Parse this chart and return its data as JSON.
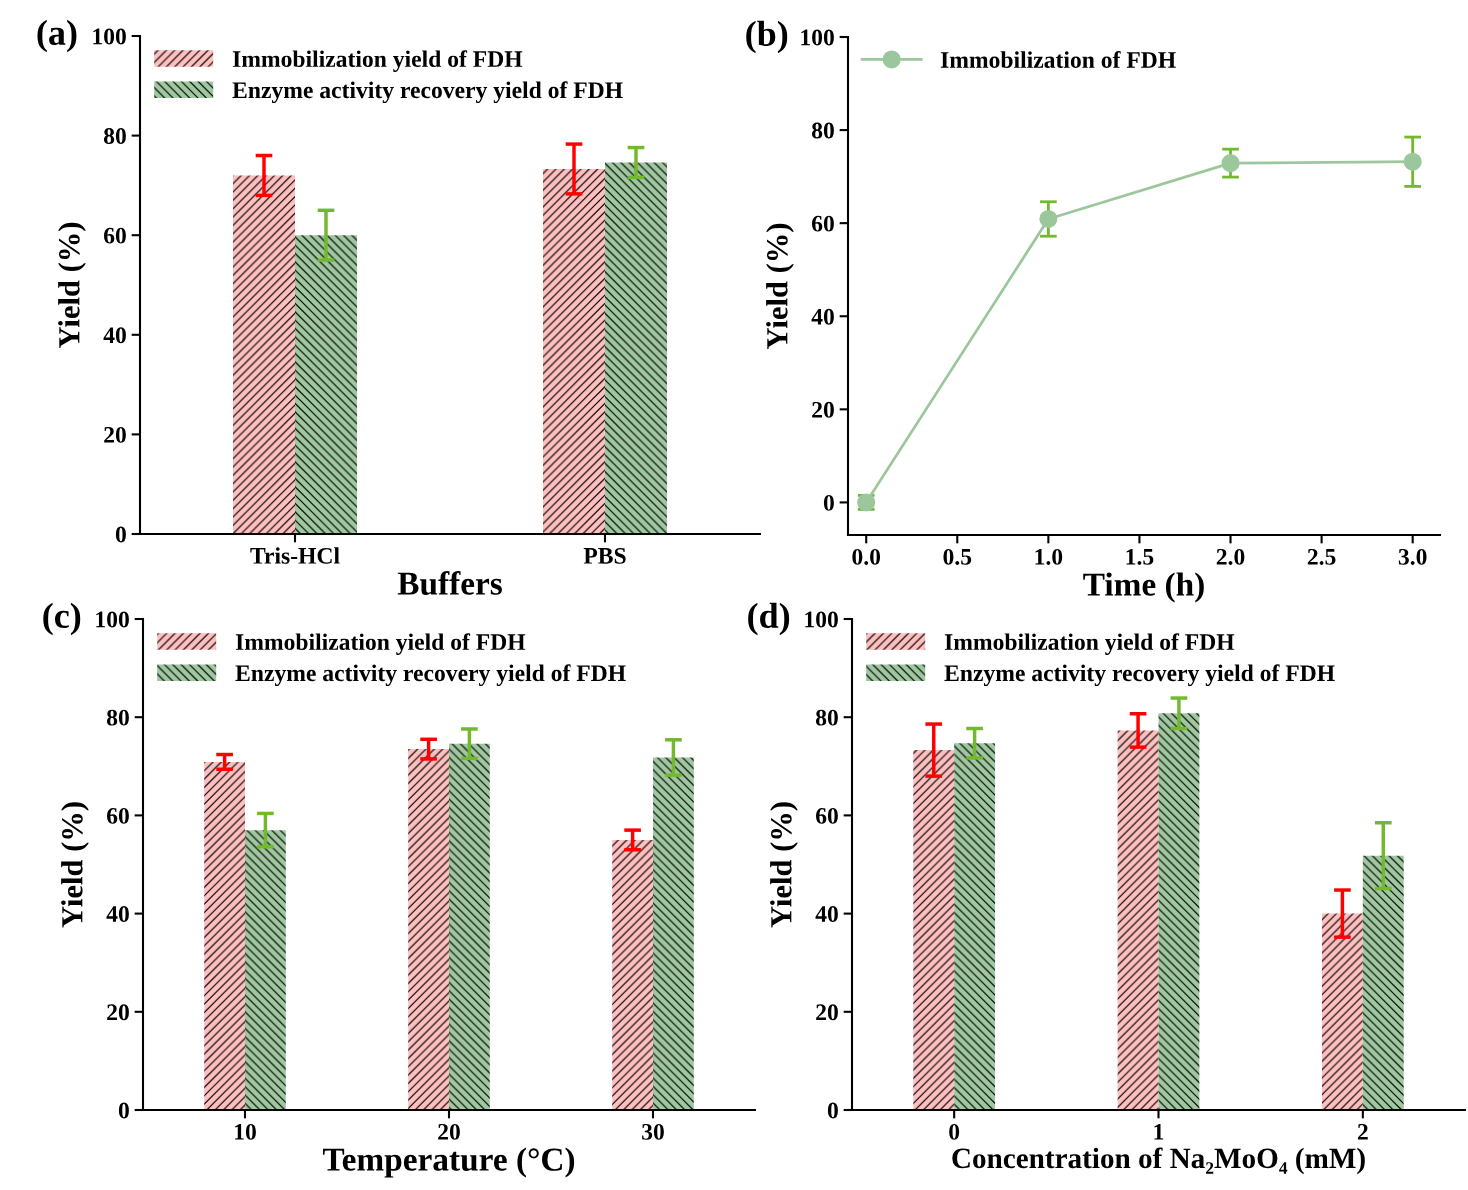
{
  "chart_data": [
    {
      "type": "bar",
      "title": "(a)",
      "xlabel": "Buffers",
      "ylabel": "Yield (%)",
      "categories": [
        "Tris-HCl",
        "PBS"
      ],
      "ylim": [
        0,
        100
      ],
      "yticks": [
        0,
        20,
        40,
        60,
        80,
        100
      ],
      "grid": false,
      "legend": "top left",
      "series": [
        {
          "name": "Immobilization yield of FDH",
          "color": "#ffbfbf",
          "values": [
            72,
            73.3
          ],
          "errors": [
            4,
            5
          ]
        },
        {
          "name": "Enzyme activity recovery yield of FDH",
          "color": "#a0c8a0",
          "values": [
            60,
            74.6
          ],
          "errors": [
            5,
            3
          ]
        }
      ]
    },
    {
      "type": "line",
      "title": "(b)",
      "xlabel": "Time (h)",
      "ylabel": "Yield (%)",
      "xlim": [
        -0.1,
        3.15
      ],
      "xticks": [
        {
          "value": 0,
          "label": "0.0"
        },
        0.5,
        {
          "value": 1,
          "label": "1.0"
        },
        1.5,
        {
          "value": 2,
          "label": "2.0"
        },
        2.5,
        {
          "value": 3,
          "label": "3.0"
        }
      ],
      "ylim": [
        -7,
        100
      ],
      "yticks": [
        0,
        20,
        40,
        60,
        80,
        100
      ],
      "grid": false,
      "legend": "top left",
      "marker": "circle",
      "line_style": "solid",
      "series": [
        {
          "name": "Immobilization of FDH",
          "color": "#9cc79c",
          "x": [
            0,
            1,
            2,
            3
          ],
          "values": [
            0,
            60.9,
            72.9,
            73.2
          ],
          "errors": [
            1.5,
            3.7,
            3,
            5.3
          ]
        }
      ]
    },
    {
      "type": "bar",
      "title": "(c)",
      "xlabel": "Temperature (°C)",
      "ylabel": "Yield (%)",
      "categories": [
        "10",
        "20",
        "30"
      ],
      "ylim": [
        0,
        100
      ],
      "yticks": [
        0,
        20,
        40,
        60,
        80,
        100
      ],
      "grid": false,
      "legend": "top left",
      "series": [
        {
          "name": "Immobilization yield of FDH",
          "color": "#ffbfbf",
          "values": [
            70.9,
            73.5,
            55
          ],
          "errors": [
            1.5,
            2,
            2
          ]
        },
        {
          "name": "Enzyme activity recovery yield of FDH",
          "color": "#a0c8a0",
          "values": [
            57,
            74.6,
            71.8
          ],
          "errors": [
            3.4,
            3,
            3.6
          ]
        }
      ]
    },
    {
      "type": "bar",
      "title": "(d)",
      "xlabel": "Concentration of Na₂MoO₄ (mM)",
      "ylabel": "Yield (%)",
      "categories": [
        "0",
        "1",
        "2"
      ],
      "ylim": [
        0,
        100
      ],
      "yticks": [
        0,
        20,
        40,
        60,
        80,
        100
      ],
      "grid": false,
      "legend": "top left",
      "series": [
        {
          "name": "Immobilization yield of FDH",
          "color": "#ffbfbf",
          "values": [
            73.3,
            77.3,
            40
          ],
          "errors": [
            5.3,
            3.4,
            4.8
          ]
        },
        {
          "name": "Enzyme activity recovery yield of FDH",
          "color": "#a0c8a0",
          "values": [
            74.7,
            80.8,
            51.8
          ],
          "errors": [
            3,
            3.1,
            6.7
          ]
        }
      ]
    }
  ]
}
